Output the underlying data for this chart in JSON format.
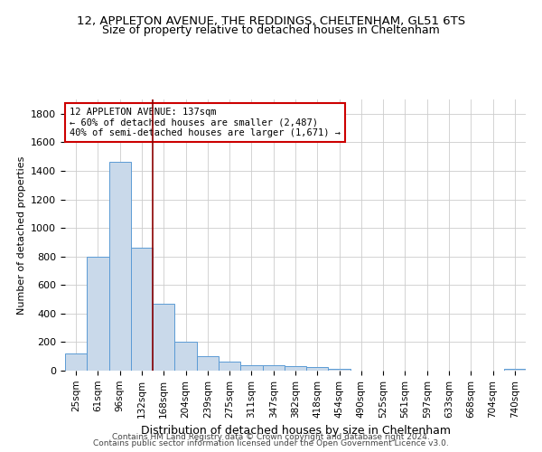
{
  "title": "12, APPLETON AVENUE, THE REDDINGS, CHELTENHAM, GL51 6TS",
  "subtitle": "Size of property relative to detached houses in Cheltenham",
  "xlabel": "Distribution of detached houses by size in Cheltenham",
  "ylabel": "Number of detached properties",
  "categories": [
    "25sqm",
    "61sqm",
    "96sqm",
    "132sqm",
    "168sqm",
    "204sqm",
    "239sqm",
    "275sqm",
    "311sqm",
    "347sqm",
    "382sqm",
    "418sqm",
    "454sqm",
    "490sqm",
    "525sqm",
    "561sqm",
    "597sqm",
    "633sqm",
    "668sqm",
    "704sqm",
    "740sqm"
  ],
  "values": [
    120,
    795,
    1460,
    860,
    470,
    200,
    100,
    65,
    40,
    35,
    30,
    25,
    15,
    0,
    0,
    0,
    0,
    0,
    0,
    0,
    15
  ],
  "bar_color": "#c9d9ea",
  "bar_edge_color": "#5b9bd5",
  "property_line_color": "#8b0000",
  "property_line_index": 3,
  "annotation_line1": "12 APPLETON AVENUE: 137sqm",
  "annotation_line2": "← 60% of detached houses are smaller (2,487)",
  "annotation_line3": "40% of semi-detached houses are larger (1,671) →",
  "annotation_box_color": "#ffffff",
  "annotation_box_edge": "#cc0000",
  "ylim": [
    0,
    1900
  ],
  "yticks": [
    0,
    200,
    400,
    600,
    800,
    1000,
    1200,
    1400,
    1600,
    1800
  ],
  "footer1": "Contains HM Land Registry data © Crown copyright and database right 2024.",
  "footer2": "Contains public sector information licensed under the Open Government Licence v3.0.",
  "background_color": "#ffffff",
  "grid_color": "#cccccc",
  "title_fontsize": 9.5,
  "subtitle_fontsize": 9,
  "ylabel_fontsize": 8,
  "xlabel_fontsize": 9
}
